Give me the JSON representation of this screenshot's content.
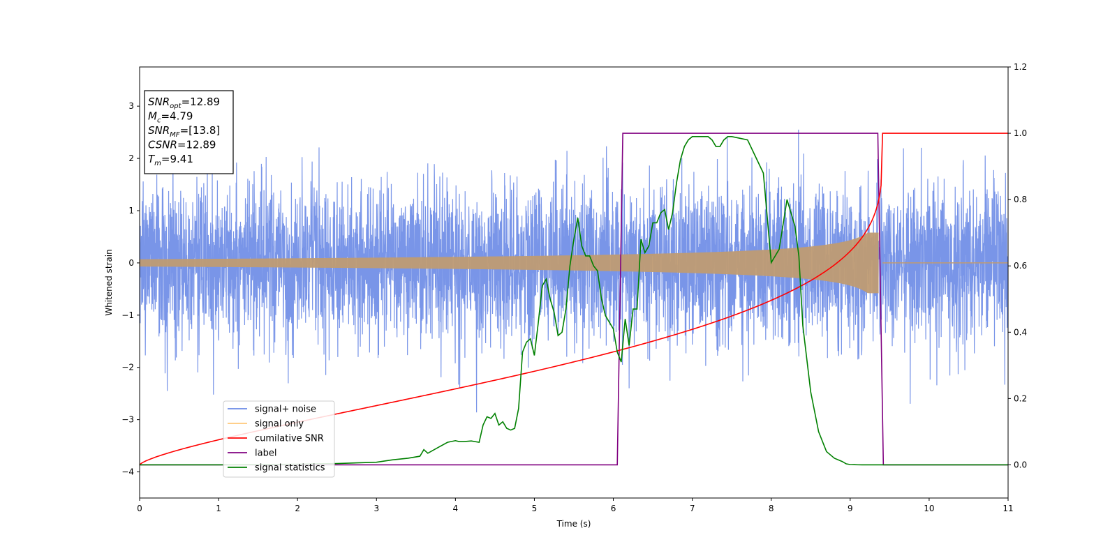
{
  "chart_data": {
    "type": "line",
    "title": "",
    "xlabel": "Time (s)",
    "ylabel": "Whitened strain",
    "xlim": [
      0,
      11
    ],
    "ylim_left": [
      -4.5,
      3.75
    ],
    "ylim_right": [
      -0.1,
      1.2
    ],
    "x_ticks": [
      0,
      1,
      2,
      3,
      4,
      5,
      6,
      7,
      8,
      9,
      10,
      11
    ],
    "y_ticks_left": [
      3,
      2,
      1,
      0,
      -1,
      -2,
      -3,
      -4
    ],
    "y_ticks_right": [
      1.2,
      1.0,
      0.8,
      0.6,
      0.4,
      0.2,
      0.0
    ],
    "grid": false,
    "legend_position": "lower-left",
    "annotation": {
      "lines": [
        {
          "sym": "SNR",
          "sub": "opt",
          "val": "=12.89"
        },
        {
          "sym": "M",
          "sub": "c",
          "val": "=4.79"
        },
        {
          "sym": "SNR",
          "sub": "MF",
          "val": "=[13.8]"
        },
        {
          "sym": "CSNR",
          "sub": "",
          "val": "=12.89"
        },
        {
          "sym": "T",
          "sub": "m",
          "val": "=9.41"
        }
      ]
    },
    "series": [
      {
        "name": "signal+ noise",
        "color": "#6a8ae6",
        "axis": "left",
        "kind": "noise",
        "std": 0.75,
        "max_abs": 3.4,
        "end": 11
      },
      {
        "name": "signal only",
        "color": "#ffc87a",
        "axis": "left",
        "kind": "chirp",
        "envelope_start": 0.07,
        "envelope_end": 0.58,
        "t_merge": 9.41,
        "display_color": "#bf9b73"
      },
      {
        "name": "cumilative SNR",
        "color": "#ff0000",
        "axis": "right",
        "kind": "cumulative",
        "t_merge": 9.41
      },
      {
        "name": "label",
        "color": "#800080",
        "axis": "right",
        "x": [
          0,
          6.05,
          6.12,
          9.35,
          9.42,
          11
        ],
        "y": [
          0,
          0,
          1,
          1,
          0,
          0
        ]
      },
      {
        "name": "signal statistics",
        "color": "#008000",
        "axis": "right",
        "x": [
          0,
          1.0,
          2.0,
          2.5,
          3.0,
          3.2,
          3.4,
          3.55,
          3.6,
          3.65,
          3.8,
          3.9,
          4.0,
          4.05,
          4.1,
          4.2,
          4.3,
          4.35,
          4.4,
          4.45,
          4.5,
          4.55,
          4.6,
          4.65,
          4.7,
          4.75,
          4.8,
          4.85,
          4.9,
          4.95,
          5.0,
          5.05,
          5.1,
          5.15,
          5.2,
          5.25,
          5.3,
          5.35,
          5.4,
          5.45,
          5.5,
          5.55,
          5.6,
          5.65,
          5.7,
          5.75,
          5.8,
          5.85,
          5.9,
          5.95,
          6.0,
          6.05,
          6.1,
          6.15,
          6.2,
          6.25,
          6.3,
          6.35,
          6.4,
          6.45,
          6.5,
          6.55,
          6.6,
          6.65,
          6.7,
          6.75,
          6.8,
          6.85,
          6.9,
          6.95,
          7.0,
          7.05,
          7.1,
          7.15,
          7.2,
          7.25,
          7.3,
          7.35,
          7.4,
          7.45,
          7.5,
          7.6,
          7.7,
          7.8,
          7.9,
          8.0,
          8.1,
          8.2,
          8.3,
          8.35,
          8.4,
          8.5,
          8.6,
          8.7,
          8.8,
          8.9,
          8.95,
          9.0,
          9.05,
          9.1,
          9.15,
          9.2,
          9.25,
          9.3,
          9.35,
          9.4,
          9.45,
          9.5,
          9.55,
          9.6,
          9.7,
          9.8,
          10.0,
          11.0
        ],
        "y": [
          0,
          0,
          0.002,
          0.004,
          0.008,
          0.015,
          0.02,
          0.026,
          0.046,
          0.035,
          0.055,
          0.068,
          0.073,
          0.07,
          0.07,
          0.072,
          0.068,
          0.12,
          0.145,
          0.14,
          0.155,
          0.12,
          0.13,
          0.11,
          0.105,
          0.11,
          0.17,
          0.34,
          0.37,
          0.38,
          0.33,
          0.43,
          0.54,
          0.56,
          0.5,
          0.46,
          0.39,
          0.4,
          0.47,
          0.6,
          0.68,
          0.745,
          0.66,
          0.63,
          0.63,
          0.6,
          0.585,
          0.5,
          0.45,
          0.43,
          0.41,
          0.34,
          0.31,
          0.44,
          0.36,
          0.47,
          0.47,
          0.68,
          0.64,
          0.66,
          0.73,
          0.73,
          0.76,
          0.77,
          0.71,
          0.76,
          0.85,
          0.92,
          0.96,
          0.98,
          0.99,
          0.99,
          0.99,
          0.99,
          0.99,
          0.98,
          0.96,
          0.96,
          0.98,
          0.99,
          0.99,
          0.985,
          0.98,
          0.93,
          0.88,
          0.61,
          0.65,
          0.8,
          0.72,
          0.63,
          0.42,
          0.22,
          0.1,
          0.04,
          0.02,
          0.01,
          0.003,
          0.001,
          0.0005,
          0.0002,
          0.0001,
          0.0001,
          0.0001,
          0,
          0,
          0,
          0,
          0,
          0,
          0,
          0,
          0,
          0,
          0
        ]
      }
    ]
  }
}
